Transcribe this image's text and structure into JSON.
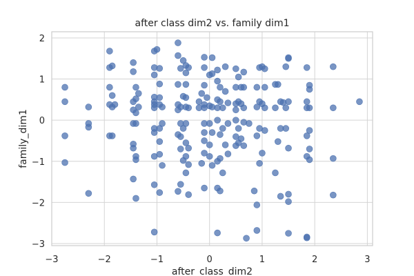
{
  "chart_data": {
    "type": "scatter",
    "title": "after class dim2 vs. family dim1",
    "xlabel": "after_class_dim2",
    "ylabel": "family_dim1",
    "xlim": [
      -3,
      3.1
    ],
    "ylim": [
      -3.05,
      2.15
    ],
    "xticks": [
      -3,
      -2,
      -1,
      0,
      1,
      2,
      3
    ],
    "yticks": [
      -3,
      -2,
      -1,
      0,
      1,
      2
    ],
    "grid": true,
    "color": "#4c72b0",
    "points": [
      [
        -2.75,
        0.8
      ],
      [
        -2.75,
        0.45
      ],
      [
        -2.75,
        -0.38
      ],
      [
        -2.75,
        -1.03
      ],
      [
        -2.3,
        0.32
      ],
      [
        -2.3,
        -0.08
      ],
      [
        -2.3,
        -0.17
      ],
      [
        -2.3,
        -1.78
      ],
      [
        -1.9,
        1.68
      ],
      [
        -1.9,
        1.28
      ],
      [
        -1.85,
        1.32
      ],
      [
        -1.9,
        0.8
      ],
      [
        -1.85,
        0.6
      ],
      [
        -1.9,
        0.38
      ],
      [
        -1.85,
        0.32
      ],
      [
        -1.8,
        0.38
      ],
      [
        -1.9,
        -0.38
      ],
      [
        -1.85,
        -0.38
      ],
      [
        -1.45,
        1.4
      ],
      [
        -1.45,
        1.18
      ],
      [
        -1.4,
        0.8
      ],
      [
        -1.35,
        0.65
      ],
      [
        -1.4,
        0.52
      ],
      [
        -1.45,
        0.45
      ],
      [
        -1.35,
        0.32
      ],
      [
        -1.45,
        0.25
      ],
      [
        -1.4,
        0.18
      ],
      [
        -1.45,
        -0.08
      ],
      [
        -1.4,
        -0.08
      ],
      [
        -1.45,
        -0.58
      ],
      [
        -1.45,
        -0.68
      ],
      [
        -1.4,
        -0.88
      ],
      [
        -1.4,
        -0.96
      ],
      [
        -1.45,
        -1.43
      ],
      [
        -1.4,
        -1.9
      ],
      [
        -1.05,
        1.68
      ],
      [
        -1.0,
        1.72
      ],
      [
        -1.05,
        1.28
      ],
      [
        -0.95,
        1.26
      ],
      [
        -1.05,
        1.1
      ],
      [
        -0.95,
        0.88
      ],
      [
        -1.05,
        0.56
      ],
      [
        -0.95,
        0.55
      ],
      [
        -1.05,
        0.45
      ],
      [
        -1.05,
        0.38
      ],
      [
        -0.95,
        0.38
      ],
      [
        -1.05,
        0.3
      ],
      [
        -0.9,
        0.32
      ],
      [
        -1.05,
        -0.2
      ],
      [
        -0.95,
        -0.2
      ],
      [
        -0.9,
        -0.08
      ],
      [
        -1.05,
        -0.3
      ],
      [
        -0.95,
        -0.52
      ],
      [
        -1.05,
        -0.88
      ],
      [
        -0.95,
        -0.83
      ],
      [
        -0.9,
        -1.1
      ],
      [
        -1.05,
        -1.57
      ],
      [
        -0.95,
        -1.76
      ],
      [
        -1.05,
        -2.72
      ],
      [
        -0.6,
        1.88
      ],
      [
        -0.6,
        1.57
      ],
      [
        -0.5,
        1.45
      ],
      [
        -0.45,
        1.33
      ],
      [
        -0.4,
        1.28
      ],
      [
        -0.55,
        1.26
      ],
      [
        -0.45,
        1.15
      ],
      [
        -0.6,
        0.87
      ],
      [
        -0.45,
        0.87
      ],
      [
        -0.5,
        0.58
      ],
      [
        -0.45,
        0.55
      ],
      [
        -0.6,
        0.38
      ],
      [
        -0.55,
        0.32
      ],
      [
        -0.45,
        0.32
      ],
      [
        -0.4,
        0.3
      ],
      [
        -0.6,
        0.25
      ],
      [
        -0.55,
        -0.08
      ],
      [
        -0.5,
        -0.2
      ],
      [
        -0.45,
        -0.08
      ],
      [
        -0.6,
        -0.35
      ],
      [
        -0.55,
        -0.4
      ],
      [
        -0.45,
        -0.55
      ],
      [
        -0.4,
        -0.68
      ],
      [
        -0.55,
        -0.7
      ],
      [
        -0.45,
        -0.88
      ],
      [
        -0.5,
        -0.98
      ],
      [
        -0.4,
        -1.08
      ],
      [
        -0.45,
        -1.28
      ],
      [
        -0.55,
        -1.56
      ],
      [
        -0.6,
        -1.73
      ],
      [
        -0.4,
        -1.81
      ],
      [
        -0.1,
        1.53
      ],
      [
        0.05,
        1.52
      ],
      [
        -0.1,
        1.28
      ],
      [
        0.0,
        1.1
      ],
      [
        0.05,
        1.13
      ],
      [
        -0.1,
        0.85
      ],
      [
        -0.15,
        0.65
      ],
      [
        -0.05,
        0.55
      ],
      [
        -0.2,
        0.45
      ],
      [
        -0.1,
        0.38
      ],
      [
        0.0,
        0.35
      ],
      [
        -0.2,
        0.3
      ],
      [
        -0.1,
        0.3
      ],
      [
        0.05,
        0.32
      ],
      [
        -0.1,
        -0.08
      ],
      [
        0.0,
        -0.08
      ],
      [
        -0.1,
        -0.3
      ],
      [
        0.05,
        -0.3
      ],
      [
        -0.1,
        -0.5
      ],
      [
        0.0,
        -0.6
      ],
      [
        -0.1,
        -0.8
      ],
      [
        0.0,
        -0.88
      ],
      [
        -0.15,
        -1.05
      ],
      [
        0.05,
        -1.1
      ],
      [
        -0.1,
        -1.65
      ],
      [
        0.15,
        1.22
      ],
      [
        0.3,
        1.3
      ],
      [
        0.15,
        0.95
      ],
      [
        0.2,
        0.8
      ],
      [
        0.3,
        0.7
      ],
      [
        0.15,
        0.5
      ],
      [
        0.2,
        0.45
      ],
      [
        0.35,
        0.42
      ],
      [
        0.15,
        0.3
      ],
      [
        0.25,
        0.3
      ],
      [
        0.15,
        0.0
      ],
      [
        0.25,
        -0.2
      ],
      [
        0.35,
        -0.08
      ],
      [
        0.2,
        -0.35
      ],
      [
        0.3,
        -0.6
      ],
      [
        0.35,
        -0.82
      ],
      [
        0.2,
        -0.93
      ],
      [
        0.15,
        -1.0
      ],
      [
        0.25,
        -1.28
      ],
      [
        0.15,
        -1.65
      ],
      [
        0.2,
        -1.72
      ],
      [
        0.15,
        -2.74
      ],
      [
        0.5,
        1.25
      ],
      [
        0.65,
        1.17
      ],
      [
        0.55,
        1.05
      ],
      [
        0.5,
        0.8
      ],
      [
        0.6,
        0.8
      ],
      [
        0.65,
        0.8
      ],
      [
        0.55,
        0.45
      ],
      [
        0.5,
        0.4
      ],
      [
        0.6,
        0.4
      ],
      [
        0.65,
        0.3
      ],
      [
        0.5,
        0.25
      ],
      [
        0.5,
        0.0
      ],
      [
        0.65,
        -0.05
      ],
      [
        0.55,
        -0.2
      ],
      [
        0.5,
        -0.4
      ],
      [
        0.6,
        -0.45
      ],
      [
        0.55,
        -0.55
      ],
      [
        0.65,
        -0.62
      ],
      [
        0.5,
        -0.62
      ],
      [
        0.75,
        -0.08
      ],
      [
        0.85,
        -1.72
      ],
      [
        0.9,
        -2.68
      ],
      [
        0.7,
        -2.87
      ],
      [
        0.95,
        1.28
      ],
      [
        1.0,
        1.3
      ],
      [
        1.05,
        1.25
      ],
      [
        0.9,
        0.8
      ],
      [
        1.05,
        0.8
      ],
      [
        0.95,
        0.45
      ],
      [
        1.0,
        0.4
      ],
      [
        0.9,
        0.32
      ],
      [
        1.05,
        0.3
      ],
      [
        0.95,
        -0.2
      ],
      [
        1.05,
        -0.25
      ],
      [
        0.9,
        -0.38
      ],
      [
        1.0,
        -0.8
      ],
      [
        0.95,
        -1.05
      ],
      [
        0.9,
        -2.06
      ],
      [
        1.25,
        0.87
      ],
      [
        1.3,
        0.87
      ],
      [
        1.35,
        0.45
      ],
      [
        1.4,
        0.43
      ],
      [
        1.25,
        0.3
      ],
      [
        1.35,
        -0.2
      ],
      [
        1.3,
        -0.52
      ],
      [
        1.25,
        -1.28
      ],
      [
        1.45,
        1.3
      ],
      [
        1.5,
        1.5
      ],
      [
        1.5,
        1.52
      ],
      [
        1.45,
        0.3
      ],
      [
        1.5,
        0.45
      ],
      [
        1.45,
        -0.2
      ],
      [
        1.5,
        -0.68
      ],
      [
        1.5,
        -1.8
      ],
      [
        1.5,
        -1.98
      ],
      [
        1.5,
        -2.75
      ],
      [
        1.35,
        -1.85
      ],
      [
        1.85,
        1.28
      ],
      [
        1.9,
        0.85
      ],
      [
        1.9,
        0.75
      ],
      [
        1.85,
        0.45
      ],
      [
        1.9,
        0.3
      ],
      [
        1.85,
        0.3
      ],
      [
        1.9,
        -0.25
      ],
      [
        1.85,
        -0.38
      ],
      [
        1.9,
        -0.7
      ],
      [
        1.85,
        -0.88
      ],
      [
        1.9,
        -0.96
      ],
      [
        1.85,
        -2.84
      ],
      [
        1.85,
        -2.86
      ],
      [
        2.35,
        1.3
      ],
      [
        2.35,
        0.3
      ],
      [
        2.35,
        -0.93
      ],
      [
        2.35,
        -1.82
      ],
      [
        2.85,
        0.45
      ]
    ]
  }
}
